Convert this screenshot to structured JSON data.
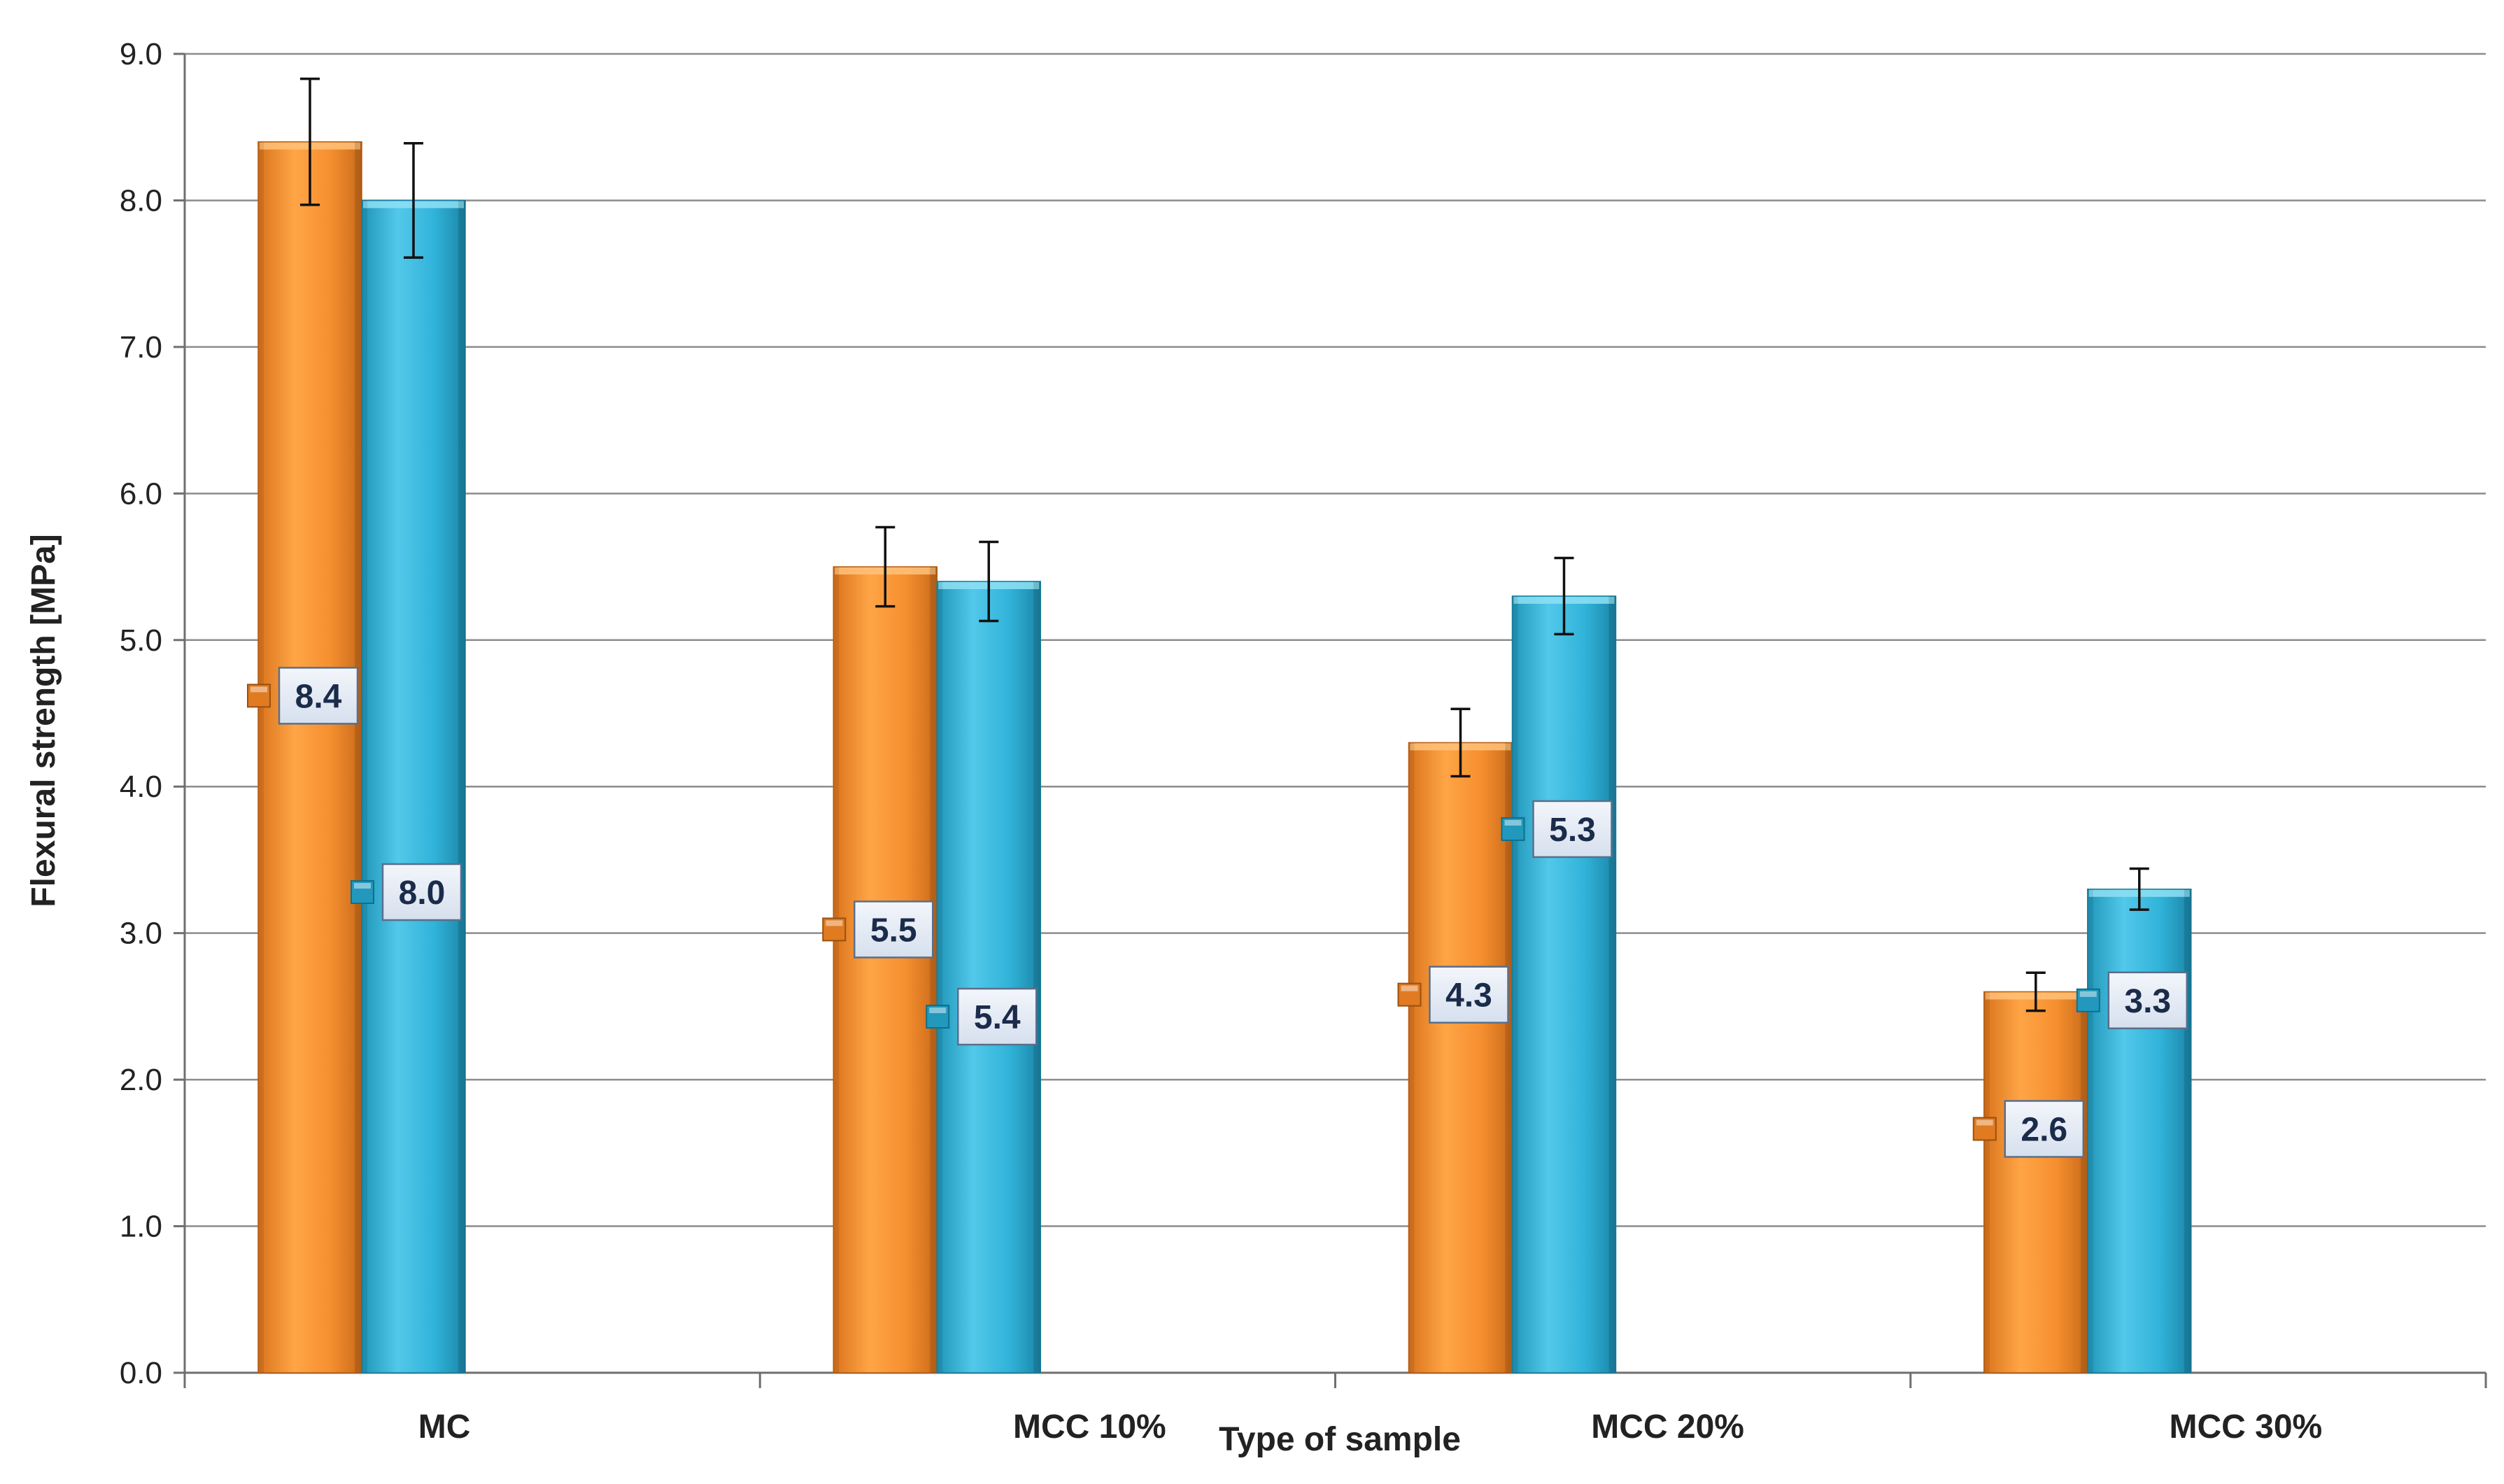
{
  "chart_data": {
    "type": "bar",
    "title": "",
    "xlabel": "Type of sample",
    "ylabel": "Flexural strength [MPa]",
    "ylim": [
      0,
      9
    ],
    "yticks": [
      "0.0",
      "1.0",
      "2.0",
      "3.0",
      "4.0",
      "5.0",
      "6.0",
      "7.0",
      "8.0",
      "9.0"
    ],
    "grid": true,
    "categories": [
      "MC",
      "MCC 10%",
      "MCC 20%",
      "MCC 30%"
    ],
    "series": [
      {
        "name": "series-orange",
        "color": "#f28c2c",
        "values": [
          8.4,
          5.5,
          4.3,
          2.6
        ],
        "labels": [
          "8.4",
          "5.5",
          "4.3",
          "2.6"
        ],
        "errors": [
          0.43,
          0.27,
          0.23,
          0.13
        ]
      },
      {
        "name": "series-blue",
        "color": "#2fb3d8",
        "values": [
          8.0,
          5.4,
          5.3,
          3.3
        ],
        "labels": [
          "8.0",
          "5.4",
          "5.3",
          "3.3"
        ],
        "errors": [
          0.39,
          0.27,
          0.26,
          0.14
        ]
      }
    ]
  }
}
